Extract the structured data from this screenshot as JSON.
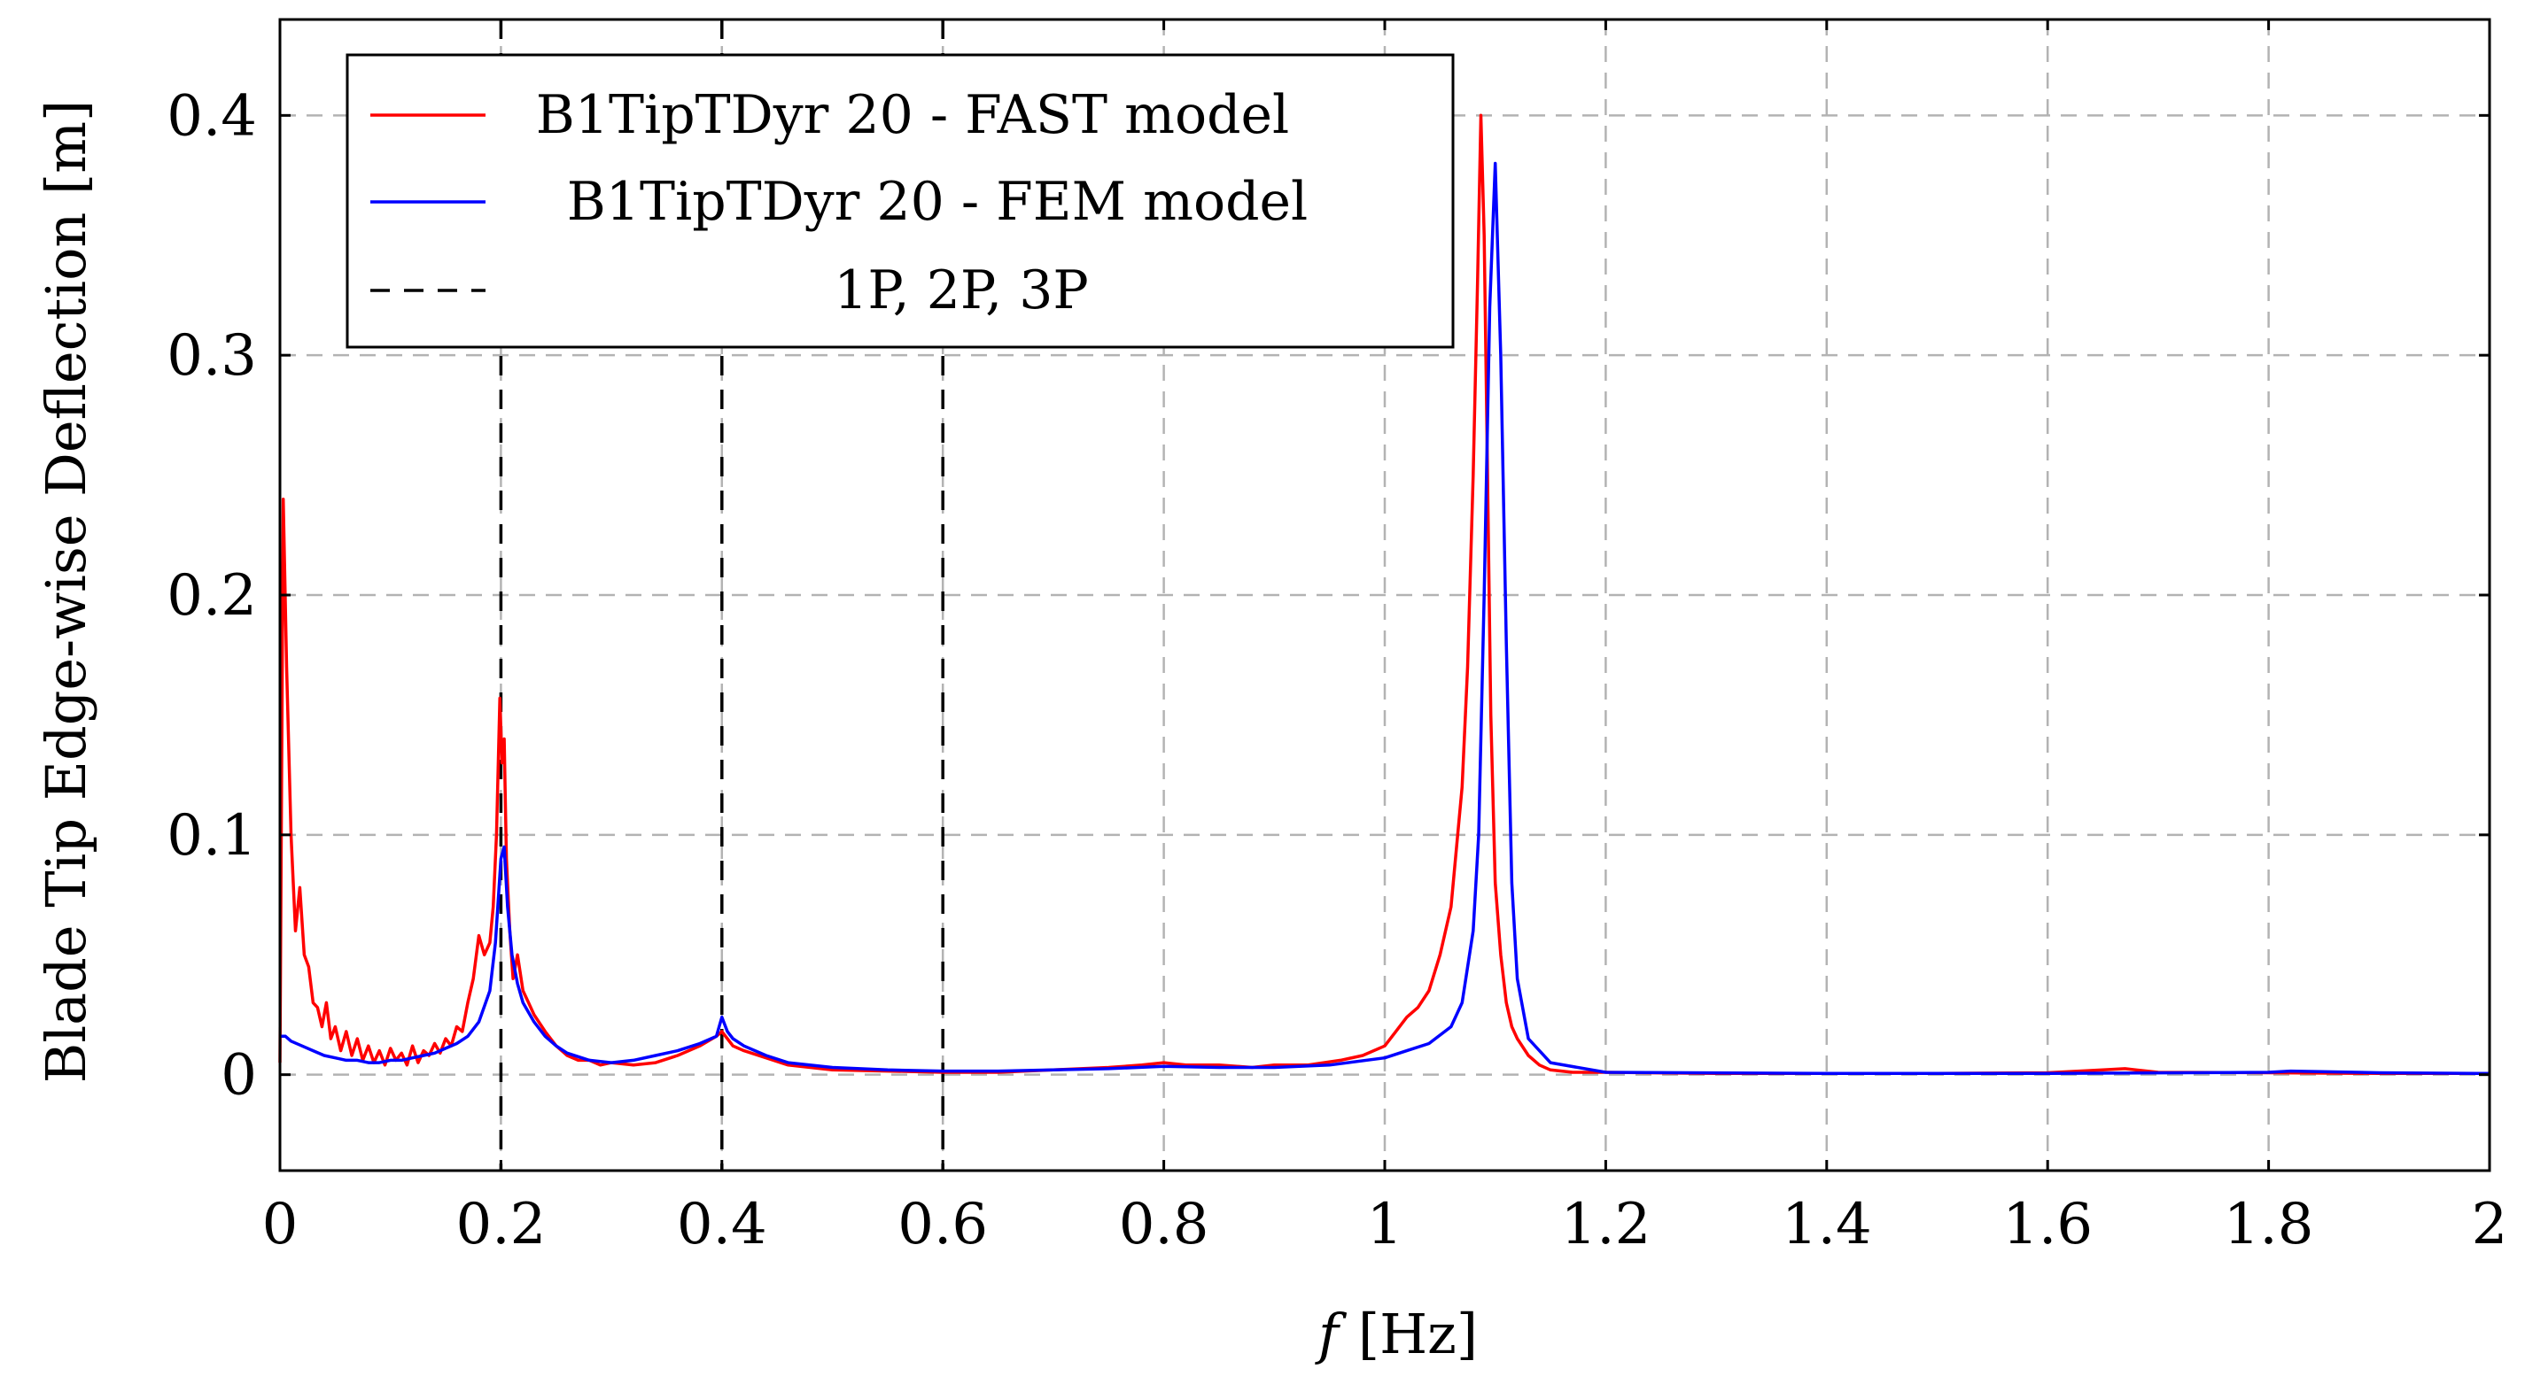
{
  "chart_data": {
    "type": "line",
    "title": "",
    "xlabel_var": "f",
    "xlabel_unit": "[Hz]",
    "ylabel": "Blade Tip Edge-wise Deflection [m]",
    "xlim": [
      0,
      2
    ],
    "ylim": [
      -0.04,
      0.44
    ],
    "x_ticks": [
      0,
      0.2,
      0.4,
      0.6,
      0.8,
      1.0,
      1.2,
      1.4,
      1.6,
      1.8,
      2.0
    ],
    "x_tick_labels": [
      "0",
      "0.2",
      "0.4",
      "0.6",
      "0.8",
      "1",
      "1.2",
      "1.4",
      "1.6",
      "1.8",
      "2"
    ],
    "y_ticks": [
      0,
      0.1,
      0.2,
      0.3,
      0.4
    ],
    "y_tick_labels": [
      "0",
      "0.1",
      "0.2",
      "0.3",
      "0.4"
    ],
    "grid": true,
    "legend_position": "top-left",
    "vertical_lines": {
      "name": "1P, 2P, 3P",
      "x": [
        0.2,
        0.4,
        0.6
      ],
      "color": "#000000",
      "style": "dashed"
    },
    "series": [
      {
        "name": "B1TipTDyr 20 - FAST model",
        "color": "#ff0000",
        "x": [
          0,
          0.003,
          0.006,
          0.01,
          0.014,
          0.018,
          0.022,
          0.026,
          0.03,
          0.034,
          0.038,
          0.042,
          0.046,
          0.05,
          0.055,
          0.06,
          0.065,
          0.07,
          0.075,
          0.08,
          0.085,
          0.09,
          0.095,
          0.1,
          0.105,
          0.11,
          0.115,
          0.12,
          0.125,
          0.13,
          0.135,
          0.14,
          0.145,
          0.15,
          0.155,
          0.16,
          0.165,
          0.17,
          0.175,
          0.18,
          0.185,
          0.19,
          0.193,
          0.196,
          0.199,
          0.201,
          0.203,
          0.205,
          0.208,
          0.211,
          0.215,
          0.22,
          0.225,
          0.23,
          0.24,
          0.25,
          0.26,
          0.27,
          0.28,
          0.29,
          0.3,
          0.32,
          0.34,
          0.36,
          0.38,
          0.395,
          0.4,
          0.405,
          0.41,
          0.42,
          0.44,
          0.46,
          0.5,
          0.55,
          0.6,
          0.65,
          0.7,
          0.75,
          0.78,
          0.8,
          0.82,
          0.85,
          0.88,
          0.9,
          0.93,
          0.96,
          0.98,
          1.0,
          1.01,
          1.02,
          1.03,
          1.04,
          1.05,
          1.06,
          1.07,
          1.075,
          1.08,
          1.084,
          1.087,
          1.09,
          1.093,
          1.096,
          1.1,
          1.105,
          1.11,
          1.115,
          1.12,
          1.13,
          1.14,
          1.15,
          1.17,
          1.2,
          1.3,
          1.4,
          1.5,
          1.6,
          1.65,
          1.67,
          1.7,
          1.8,
          1.9,
          2.0
        ],
        "y": [
          0.005,
          0.24,
          0.17,
          0.1,
          0.06,
          0.078,
          0.05,
          0.045,
          0.03,
          0.028,
          0.02,
          0.03,
          0.015,
          0.02,
          0.01,
          0.018,
          0.008,
          0.015,
          0.006,
          0.012,
          0.005,
          0.01,
          0.004,
          0.011,
          0.006,
          0.009,
          0.004,
          0.012,
          0.005,
          0.01,
          0.008,
          0.013,
          0.009,
          0.015,
          0.012,
          0.02,
          0.018,
          0.03,
          0.04,
          0.058,
          0.05,
          0.055,
          0.07,
          0.1,
          0.157,
          0.13,
          0.14,
          0.09,
          0.06,
          0.04,
          0.05,
          0.035,
          0.03,
          0.025,
          0.018,
          0.012,
          0.008,
          0.006,
          0.006,
          0.004,
          0.005,
          0.004,
          0.005,
          0.008,
          0.012,
          0.016,
          0.018,
          0.015,
          0.012,
          0.01,
          0.007,
          0.004,
          0.002,
          0.0015,
          0.001,
          0.001,
          0.002,
          0.003,
          0.004,
          0.005,
          0.004,
          0.004,
          0.003,
          0.004,
          0.004,
          0.006,
          0.008,
          0.012,
          0.018,
          0.024,
          0.028,
          0.035,
          0.05,
          0.07,
          0.12,
          0.17,
          0.25,
          0.33,
          0.4,
          0.35,
          0.25,
          0.15,
          0.08,
          0.05,
          0.03,
          0.02,
          0.015,
          0.008,
          0.004,
          0.002,
          0.001,
          0.001,
          0.0005,
          0.0005,
          0.0005,
          0.0008,
          0.002,
          0.0025,
          0.001,
          0.0008,
          0.0005,
          0.0005
        ]
      },
      {
        "name": "B1TipTDyr 20 - FEM model",
        "color": "#0000ff",
        "x": [
          0,
          0.005,
          0.01,
          0.02,
          0.03,
          0.04,
          0.05,
          0.06,
          0.07,
          0.08,
          0.09,
          0.1,
          0.11,
          0.12,
          0.13,
          0.14,
          0.15,
          0.16,
          0.17,
          0.18,
          0.19,
          0.195,
          0.2,
          0.203,
          0.206,
          0.21,
          0.215,
          0.22,
          0.23,
          0.24,
          0.25,
          0.26,
          0.28,
          0.3,
          0.32,
          0.34,
          0.36,
          0.38,
          0.395,
          0.4,
          0.405,
          0.41,
          0.42,
          0.44,
          0.46,
          0.5,
          0.55,
          0.6,
          0.65,
          0.7,
          0.75,
          0.8,
          0.85,
          0.9,
          0.95,
          1.0,
          1.02,
          1.04,
          1.06,
          1.07,
          1.08,
          1.085,
          1.09,
          1.095,
          1.1,
          1.105,
          1.11,
          1.115,
          1.12,
          1.13,
          1.15,
          1.2,
          1.4,
          1.6,
          1.8,
          1.82,
          1.9,
          2.0
        ],
        "y": [
          0.016,
          0.016,
          0.014,
          0.012,
          0.01,
          0.008,
          0.007,
          0.006,
          0.006,
          0.005,
          0.005,
          0.006,
          0.006,
          0.007,
          0.008,
          0.009,
          0.011,
          0.013,
          0.016,
          0.022,
          0.035,
          0.055,
          0.09,
          0.095,
          0.07,
          0.05,
          0.038,
          0.03,
          0.022,
          0.016,
          0.012,
          0.009,
          0.006,
          0.005,
          0.006,
          0.008,
          0.01,
          0.013,
          0.016,
          0.024,
          0.018,
          0.015,
          0.012,
          0.008,
          0.005,
          0.003,
          0.002,
          0.0015,
          0.0015,
          0.002,
          0.0025,
          0.0035,
          0.003,
          0.003,
          0.004,
          0.007,
          0.01,
          0.013,
          0.02,
          0.03,
          0.06,
          0.1,
          0.2,
          0.32,
          0.38,
          0.3,
          0.18,
          0.08,
          0.04,
          0.015,
          0.005,
          0.001,
          0.0005,
          0.0005,
          0.001,
          0.0015,
          0.0008,
          0.0005
        ]
      }
    ]
  }
}
